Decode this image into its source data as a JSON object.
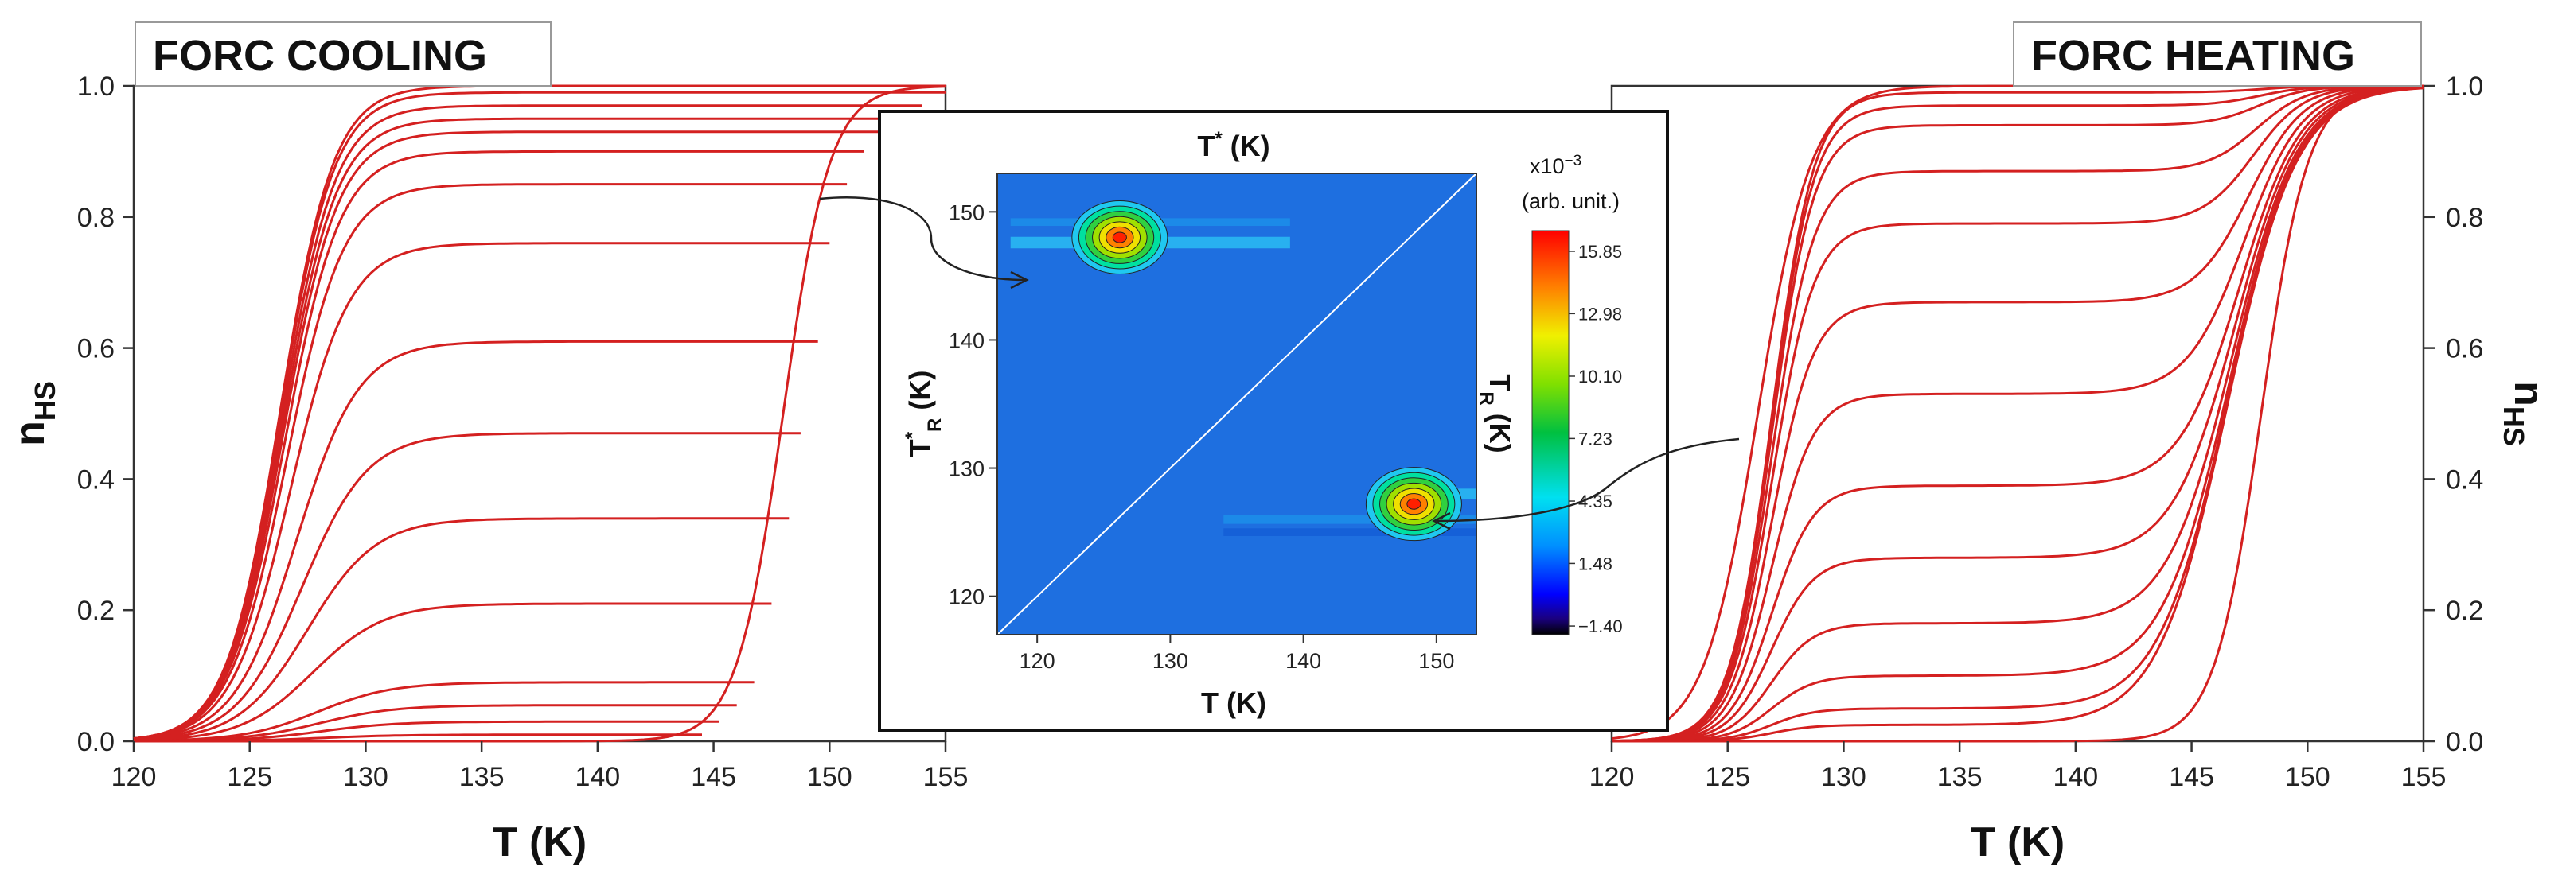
{
  "chart_data": [
    {
      "type": "line",
      "title": "FORC COOLING",
      "xlabel": "T (K)",
      "ylabel_main": "n",
      "ylabel_sub": "HS",
      "xlim": [
        120,
        155
      ],
      "ylim": [
        0,
        1
      ],
      "xticks": [
        "120",
        "125",
        "130",
        "135",
        "140",
        "145",
        "150",
        "155"
      ],
      "yticks": [
        "0.0",
        "0.2",
        "0.4",
        "0.6",
        "0.8",
        "1.0"
      ],
      "line_color": "#d42020",
      "description_levels": [
        1.0,
        0.99,
        0.97,
        0.95,
        0.93,
        0.9,
        0.85,
        0.76,
        0.61,
        0.47,
        0.34,
        0.21,
        0.09,
        0.055,
        0.03,
        0.01
      ],
      "series": [
        {
          "plateau": 0.99,
          "x": [
            128.0,
            155.0
          ],
          "reversal_T": 155.0
        },
        {
          "plateau": 0.97,
          "x": [
            128.3,
            154.0
          ],
          "reversal_T": 154.0
        },
        {
          "plateau": 0.95,
          "x": [
            128.6,
            153.0
          ],
          "reversal_T": 153.0
        },
        {
          "plateau": 0.93,
          "x": [
            128.9,
            152.3
          ],
          "reversal_T": 152.3
        },
        {
          "plateau": 0.9,
          "x": [
            129.2,
            151.5
          ],
          "reversal_T": 151.5
        },
        {
          "plateau": 0.85,
          "x": [
            129.5,
            150.9
          ],
          "reversal_T": 150.9
        },
        {
          "plateau": 0.76,
          "x": [
            130.0,
            150.2
          ],
          "reversal_T": 150.2
        },
        {
          "plateau": 0.61,
          "x": [
            130.5,
            149.5
          ],
          "reversal_T": 149.5
        },
        {
          "plateau": 0.47,
          "x": [
            131.0,
            148.9
          ],
          "reversal_T": 148.9
        },
        {
          "plateau": 0.34,
          "x": [
            131.5,
            148.3
          ],
          "reversal_T": 148.3
        },
        {
          "plateau": 0.21,
          "x": [
            132.0,
            147.6
          ],
          "reversal_T": 147.6
        },
        {
          "plateau": 0.09,
          "x": [
            132.5,
            146.8
          ],
          "reversal_T": 146.8
        },
        {
          "plateau": 0.055,
          "x": [
            133.0,
            146.0
          ],
          "reversal_T": 146.0
        },
        {
          "plateau": 0.03,
          "x": [
            133.5,
            145.3
          ],
          "reversal_T": 145.3
        },
        {
          "plateau": 0.01,
          "x": [
            134.0,
            144.6
          ],
          "reversal_T": 144.6
        }
      ],
      "major_descending_T50": 126.3,
      "major_ascending_T50": 148.0
    },
    {
      "type": "heatmap",
      "top_label_main": "T",
      "top_label_sup": "*",
      "top_label_unit": " (K)",
      "xlabel": "T (K)",
      "ylabel_main": "T",
      "ylabel_sup": "*",
      "ylabel_sub": "R",
      "ylabel_unit": " (K)",
      "right_label_main": "T",
      "right_label_sub": "R",
      "right_label_unit": " (K)",
      "xlim": [
        117,
        153
      ],
      "ylim": [
        117,
        153
      ],
      "xticks": [
        "120",
        "130",
        "140",
        "150"
      ],
      "yticks": [
        "120",
        "130",
        "140",
        "150"
      ],
      "background_color": "#1e6fe0",
      "peaks": [
        {
          "x": 126.2,
          "y": 148.0,
          "value": 15.85
        },
        {
          "x": 148.3,
          "y": 127.2,
          "value": 15.85
        }
      ],
      "colorbar": {
        "title_line1": "x10",
        "title_exp": "−3",
        "title_line2": "(arb. unit.)",
        "ticks": [
          "15.85",
          "12.98",
          "10.10",
          "7.23",
          "4.35",
          "1.48",
          "−1.40"
        ],
        "values": [
          15.85,
          12.98,
          10.1,
          7.23,
          4.35,
          1.48,
          -1.4
        ],
        "min": -1.8,
        "max": 16.8
      }
    },
    {
      "type": "line",
      "title": "FORC HEATING",
      "xlabel": "T (K)",
      "ylabel_main": "n",
      "ylabel_sub": "HS",
      "xlim": [
        120,
        155
      ],
      "ylim": [
        0,
        1
      ],
      "xticks": [
        "120",
        "125",
        "130",
        "135",
        "140",
        "145",
        "150",
        "155"
      ],
      "yticks": [
        "0.0",
        "0.2",
        "0.4",
        "0.6",
        "0.8",
        "1.0"
      ],
      "line_color": "#d42020",
      "series": [
        {
          "plateau": 0.99,
          "x": [
            120.0,
            144.0
          ]
        },
        {
          "plateau": 0.97,
          "x": [
            120.2,
            144.4
          ]
        },
        {
          "plateau": 0.94,
          "x": [
            120.4,
            144.8
          ]
        },
        {
          "plateau": 0.87,
          "x": [
            120.7,
            145.2
          ]
        },
        {
          "plateau": 0.79,
          "x": [
            121.0,
            145.6
          ]
        },
        {
          "plateau": 0.67,
          "x": [
            121.4,
            146.0
          ]
        },
        {
          "plateau": 0.53,
          "x": [
            121.8,
            146.3
          ]
        },
        {
          "plateau": 0.39,
          "x": [
            122.2,
            146.6
          ]
        },
        {
          "plateau": 0.28,
          "x": [
            122.6,
            146.9
          ]
        },
        {
          "plateau": 0.18,
          "x": [
            123.0,
            147.2
          ]
        },
        {
          "plateau": 0.1,
          "x": [
            123.4,
            147.5
          ]
        },
        {
          "plateau": 0.05,
          "x": [
            123.8,
            147.7
          ]
        },
        {
          "plateau": 0.025,
          "x": [
            124.2,
            147.9
          ]
        }
      ],
      "major_descending_T50": 126.3,
      "major_ascending_T50": 148.0
    }
  ]
}
